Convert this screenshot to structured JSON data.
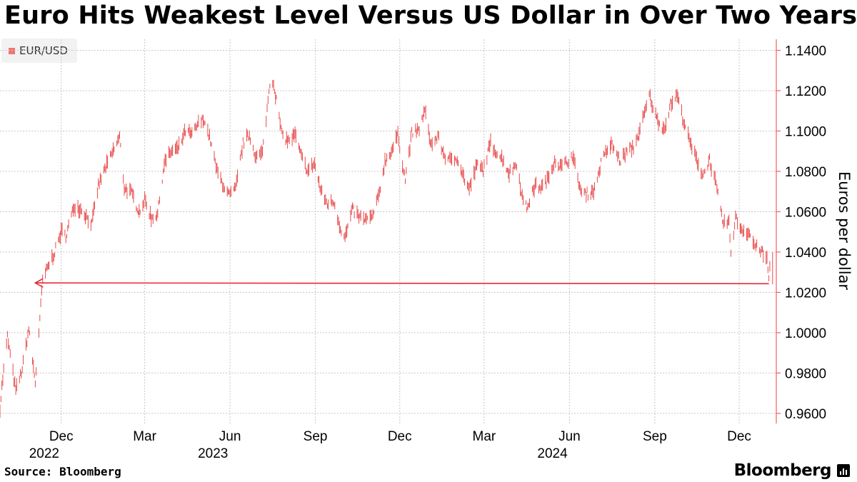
{
  "header": {
    "title": "Euro Hits Weakest Level Versus US Dollar in Over Two Years"
  },
  "footer": {
    "source": "Source: Bloomberg",
    "brand": "Bloomberg"
  },
  "colors": {
    "series": "#e84a4a",
    "arrow": "#e8273a",
    "grid": "#c8c8c8",
    "axis": "#f06060"
  },
  "chart_data": {
    "type": "line",
    "title": "Euro Hits Weakest Level Versus US Dollar in Over Two Years",
    "ylabel": "Euros per dollar",
    "xlabel": "",
    "legend": {
      "entries": [
        "EUR/USD"
      ],
      "placement": "top-left"
    },
    "grid": true,
    "y_axis_side": "right",
    "ylim": [
      0.955,
      1.1455
    ],
    "xlim": [
      "2022-09-26",
      "2025-01-10"
    ],
    "yticks": [
      "0.9600",
      "0.9800",
      "1.0000",
      "1.0200",
      "1.0400",
      "1.0600",
      "1.0800",
      "1.1000",
      "1.1200",
      "1.1400"
    ],
    "xticks": [
      {
        "date": "2022-12-01",
        "label": "Dec",
        "year": "2022"
      },
      {
        "date": "2023-03-01",
        "label": "Mar"
      },
      {
        "date": "2023-06-01",
        "label": "Jun",
        "year": "2023"
      },
      {
        "date": "2023-09-01",
        "label": "Sep"
      },
      {
        "date": "2023-12-01",
        "label": "Dec"
      },
      {
        "date": "2024-03-01",
        "label": "Mar"
      },
      {
        "date": "2024-06-01",
        "label": "Jun",
        "year": "2024"
      },
      {
        "date": "2024-09-01",
        "label": "Sep"
      },
      {
        "date": "2024-12-01",
        "label": "Dec"
      }
    ],
    "series": [
      {
        "name": "EUR/USD",
        "points": [
          [
            "2022-09-26",
            0.963
          ],
          [
            "2022-09-28",
            0.973
          ],
          [
            "2022-10-04",
            0.998
          ],
          [
            "2022-10-13",
            0.971
          ],
          [
            "2022-10-20",
            0.982
          ],
          [
            "2022-10-27",
            1.002
          ],
          [
            "2022-11-03",
            0.975
          ],
          [
            "2022-11-11",
            1.026
          ],
          [
            "2022-11-18",
            1.034
          ],
          [
            "2022-11-24",
            1.04
          ],
          [
            "2022-12-01",
            1.05
          ],
          [
            "2022-12-06",
            1.048
          ],
          [
            "2022-12-15",
            1.063
          ],
          [
            "2022-12-23",
            1.061
          ],
          [
            "2023-01-03",
            1.054
          ],
          [
            "2023-01-10",
            1.073
          ],
          [
            "2023-01-17",
            1.081
          ],
          [
            "2023-01-25",
            1.089
          ],
          [
            "2023-02-02",
            1.097
          ],
          [
            "2023-02-07",
            1.072
          ],
          [
            "2023-02-15",
            1.069
          ],
          [
            "2023-02-23",
            1.06
          ],
          [
            "2023-03-01",
            1.066
          ],
          [
            "2023-03-08",
            1.057
          ],
          [
            "2023-03-15",
            1.059
          ],
          [
            "2023-03-22",
            1.084
          ],
          [
            "2023-03-30",
            1.09
          ],
          [
            "2023-04-06",
            1.091
          ],
          [
            "2023-04-14",
            1.1
          ],
          [
            "2023-04-21",
            1.098
          ],
          [
            "2023-04-27",
            1.103
          ],
          [
            "2023-05-04",
            1.106
          ],
          [
            "2023-05-11",
            1.095
          ],
          [
            "2023-05-18",
            1.08
          ],
          [
            "2023-05-25",
            1.073
          ],
          [
            "2023-05-31",
            1.068
          ],
          [
            "2023-06-07",
            1.071
          ],
          [
            "2023-06-15",
            1.094
          ],
          [
            "2023-06-22",
            1.098
          ],
          [
            "2023-06-29",
            1.087
          ],
          [
            "2023-07-06",
            1.089
          ],
          [
            "2023-07-14",
            1.124
          ],
          [
            "2023-07-18",
            1.124
          ],
          [
            "2023-07-27",
            1.098
          ],
          [
            "2023-08-03",
            1.095
          ],
          [
            "2023-08-10",
            1.098
          ],
          [
            "2023-08-17",
            1.087
          ],
          [
            "2023-08-24",
            1.08
          ],
          [
            "2023-08-31",
            1.084
          ],
          [
            "2023-09-07",
            1.07
          ],
          [
            "2023-09-14",
            1.064
          ],
          [
            "2023-09-21",
            1.065
          ],
          [
            "2023-09-28",
            1.052
          ],
          [
            "2023-10-03",
            1.047
          ],
          [
            "2023-10-11",
            1.061
          ],
          [
            "2023-10-19",
            1.057
          ],
          [
            "2023-10-26",
            1.056
          ],
          [
            "2023-11-01",
            1.057
          ],
          [
            "2023-11-08",
            1.067
          ],
          [
            "2023-11-15",
            1.085
          ],
          [
            "2023-11-22",
            1.09
          ],
          [
            "2023-11-29",
            1.098
          ],
          [
            "2023-12-07",
            1.076
          ],
          [
            "2023-12-14",
            1.099
          ],
          [
            "2023-12-21",
            1.1
          ],
          [
            "2023-12-28",
            1.11
          ],
          [
            "2024-01-04",
            1.093
          ],
          [
            "2024-01-11",
            1.097
          ],
          [
            "2024-01-18",
            1.088
          ],
          [
            "2024-01-25",
            1.085
          ],
          [
            "2024-02-01",
            1.087
          ],
          [
            "2024-02-08",
            1.077
          ],
          [
            "2024-02-14",
            1.071
          ],
          [
            "2024-02-22",
            1.083
          ],
          [
            "2024-02-29",
            1.081
          ],
          [
            "2024-03-08",
            1.094
          ],
          [
            "2024-03-15",
            1.089
          ],
          [
            "2024-03-21",
            1.086
          ],
          [
            "2024-03-28",
            1.079
          ],
          [
            "2024-04-05",
            1.084
          ],
          [
            "2024-04-12",
            1.065
          ],
          [
            "2024-04-16",
            1.062
          ],
          [
            "2024-04-25",
            1.073
          ],
          [
            "2024-05-02",
            1.072
          ],
          [
            "2024-05-10",
            1.077
          ],
          [
            "2024-05-16",
            1.086
          ],
          [
            "2024-05-23",
            1.082
          ],
          [
            "2024-05-30",
            1.085
          ],
          [
            "2024-06-04",
            1.088
          ],
          [
            "2024-06-14",
            1.069
          ],
          [
            "2024-06-21",
            1.069
          ],
          [
            "2024-06-28",
            1.071
          ],
          [
            "2024-07-05",
            1.084
          ],
          [
            "2024-07-12",
            1.091
          ],
          [
            "2024-07-17",
            1.093
          ],
          [
            "2024-07-26",
            1.085
          ],
          [
            "2024-08-02",
            1.09
          ],
          [
            "2024-08-09",
            1.092
          ],
          [
            "2024-08-15",
            1.099
          ],
          [
            "2024-08-23",
            1.112
          ],
          [
            "2024-08-26",
            1.118
          ],
          [
            "2024-09-03",
            1.106
          ],
          [
            "2024-09-11",
            1.101
          ],
          [
            "2024-09-18",
            1.113
          ],
          [
            "2024-09-25",
            1.118
          ],
          [
            "2024-10-01",
            1.107
          ],
          [
            "2024-10-09",
            1.094
          ],
          [
            "2024-10-16",
            1.086
          ],
          [
            "2024-10-23",
            1.078
          ],
          [
            "2024-10-30",
            1.086
          ],
          [
            "2024-11-06",
            1.073
          ],
          [
            "2024-11-13",
            1.055
          ],
          [
            "2024-11-20",
            1.054
          ],
          [
            "2024-11-22",
            1.04
          ],
          [
            "2024-11-27",
            1.057
          ],
          [
            "2024-12-04",
            1.051
          ],
          [
            "2024-12-11",
            1.05
          ],
          [
            "2024-12-18",
            1.043
          ],
          [
            "2024-12-24",
            1.041
          ],
          [
            "2024-12-31",
            1.036
          ],
          [
            "2025-01-02",
            1.027
          ],
          [
            "2025-01-03",
            1.032
          ],
          [
            "2025-01-06",
            1.037
          ]
        ]
      }
    ],
    "annotations": [
      {
        "type": "arrow",
        "from": [
          "2025-01-02",
          1.0243
        ],
        "to": [
          "2022-11-03",
          1.0247
        ]
      }
    ]
  }
}
